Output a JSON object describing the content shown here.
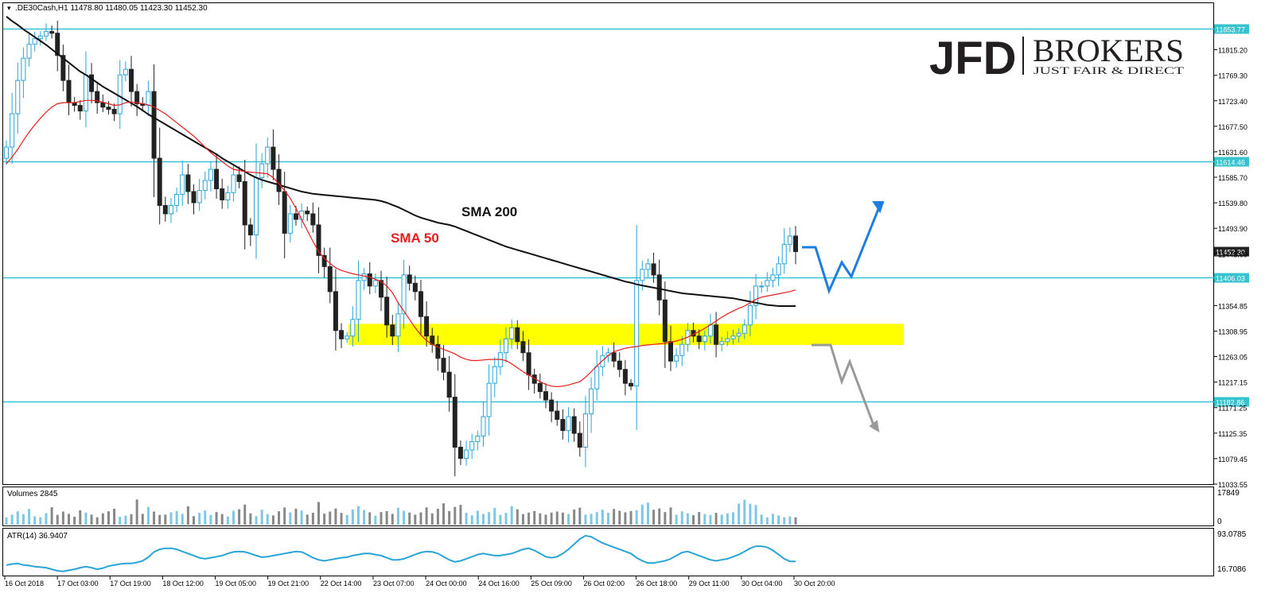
{
  "header": {
    "symbol_text": ".DE30Cash,H1  11478.80 11480.05 11423.30 11452.30"
  },
  "logo": {
    "jfd": "JFD",
    "brokers": "BROKERS",
    "tagline": "JUST FAIR & DIRECT"
  },
  "colors": {
    "level_line": "#36c2cf",
    "sma200": "#111111",
    "sma50": "#e41e1e",
    "zone": "#ffff00",
    "bull_scenario": "#1e7de0",
    "bear_scenario": "#9a9a9a",
    "volume_bar": "#7ec8e3",
    "atr_line": "#2aa4d6"
  },
  "chart_data": [
    {
      "type": "candlestick",
      "symbol": ".DE30Cash",
      "timeframe": "H1",
      "ohlc_current": {
        "open": 11478.8,
        "high": 11480.05,
        "low": 11423.3,
        "close": 11452.3
      },
      "ylim": [
        11033.55,
        11899.0
      ],
      "y_ticks": [
        11853.77,
        11815.2,
        11769.3,
        11723.4,
        11677.5,
        11631.6,
        11585.7,
        11539.8,
        11493.9,
        11448.0,
        11406.03,
        11354.85,
        11308.95,
        11263.05,
        11217.15,
        11171.25,
        11125.35,
        11079.45,
        11033.55
      ],
      "x_ticks": [
        "16 Oct 2018",
        "17 Oct 03:00",
        "17 Oct 19:00",
        "18 Oct 12:00",
        "19 Oct 05:00",
        "19 Oct 21:00",
        "22 Oct 14:00",
        "23 Oct 07:00",
        "24 Oct 00:00",
        "24 Oct 16:00",
        "25 Oct 09:00",
        "26 Oct 02:00",
        "26 Oct 18:00",
        "29 Oct 11:00",
        "30 Oct 04:00",
        "30 Oct 20:00"
      ],
      "horizontal_levels": [
        11853.77,
        11614.46,
        11406.03,
        11182.86
      ],
      "level_labels": [
        "11853.77",
        "11614.46",
        "11406.03",
        "11182.86"
      ],
      "current_price_label": "11452.30",
      "support_zone": [
        11284.0,
        11322.0
      ],
      "indicators": [
        {
          "name": "SMA 200",
          "label": "SMA 200"
        },
        {
          "name": "SMA 50",
          "label": "SMA 50"
        }
      ],
      "closes": [
        11640,
        11700,
        11760,
        11800,
        11825,
        11835,
        11840,
        11848,
        11845,
        11805,
        11760,
        11720,
        11715,
        11705,
        11770,
        11740,
        11720,
        11712,
        11708,
        11700,
        11770,
        11780,
        11740,
        11718,
        11715,
        11740,
        11620,
        11535,
        11520,
        11535,
        11555,
        11590,
        11560,
        11540,
        11562,
        11580,
        11600,
        11565,
        11545,
        11558,
        11590,
        11578,
        11500,
        11482,
        11585,
        11610,
        11640,
        11600,
        11560,
        11485,
        11520,
        11510,
        11525,
        11520,
        11500,
        11445,
        11425,
        11380,
        11310,
        11295,
        11300,
        11330,
        11400,
        11412,
        11390,
        11400,
        11370,
        11320,
        11300,
        11340,
        11410,
        11395,
        11380,
        11335,
        11300,
        11285,
        11260,
        11235,
        11190,
        11100,
        11080,
        11095,
        11110,
        11120,
        11155,
        11215,
        11245,
        11270,
        11295,
        11315,
        11290,
        11270,
        11230,
        11215,
        11200,
        11185,
        11165,
        11150,
        11130,
        11155,
        11125,
        11100,
        11160,
        11205,
        11245,
        11265,
        11270,
        11255,
        11240,
        11215,
        11210,
        11400,
        11420,
        11430,
        11410,
        11365,
        11290,
        11255,
        11265,
        11285,
        11310,
        11300,
        11290,
        11300,
        11320,
        11285,
        11290,
        11295,
        11300,
        11305,
        11320,
        11355,
        11390,
        11390,
        11400,
        11410,
        11430,
        11465,
        11480,
        11452
      ],
      "sma50": [
        11610,
        11622,
        11636,
        11652,
        11667,
        11680,
        11692,
        11703,
        11712,
        11718,
        11720,
        11720,
        11720,
        11722,
        11724,
        11724,
        11723,
        11721,
        11718,
        11715,
        11716,
        11720,
        11721,
        11720,
        11718,
        11716,
        11712,
        11706,
        11700,
        11692,
        11684,
        11676,
        11668,
        11660,
        11650,
        11640,
        11630,
        11622,
        11614,
        11606,
        11600,
        11598,
        11596,
        11595,
        11594,
        11593,
        11592,
        11585,
        11574,
        11562,
        11548,
        11530,
        11510,
        11490,
        11470,
        11452,
        11440,
        11431,
        11423,
        11418,
        11415,
        11412,
        11410,
        11408,
        11406,
        11402,
        11398,
        11390,
        11378,
        11360,
        11345,
        11330,
        11315,
        11302,
        11292,
        11285,
        11280,
        11276,
        11272,
        11268,
        11262,
        11258,
        11256,
        11256,
        11257,
        11258,
        11258,
        11258,
        11256,
        11250,
        11243,
        11236,
        11230,
        11224,
        11218,
        11213,
        11210,
        11209,
        11210,
        11212,
        11215,
        11218,
        11226,
        11236,
        11246,
        11256,
        11265,
        11272,
        11275,
        11278,
        11280,
        11281,
        11283,
        11284,
        11285,
        11286,
        11287,
        11289,
        11291,
        11294,
        11298,
        11303,
        11308,
        11314,
        11320,
        11327,
        11334,
        11340,
        11345,
        11350,
        11354,
        11360,
        11366,
        11370,
        11372,
        11374,
        11376,
        11378,
        11380,
        11383
      ],
      "sma200": [
        11875,
        11867,
        11860,
        11852,
        11845,
        11838,
        11831,
        11824,
        11816,
        11808,
        11800,
        11792,
        11784,
        11776,
        11770,
        11763,
        11756,
        11749,
        11743,
        11737,
        11731,
        11725,
        11719,
        11713,
        11706,
        11699,
        11693,
        11687,
        11681,
        11675,
        11669,
        11663,
        11657,
        11651,
        11645,
        11639,
        11633,
        11627,
        11620,
        11614,
        11608,
        11602,
        11596,
        11590,
        11585,
        11581,
        11578,
        11575,
        11572,
        11569,
        11566,
        11563,
        11560,
        11558,
        11556,
        11555,
        11554,
        11553,
        11552,
        11551,
        11550,
        11549,
        11548,
        11547,
        11546,
        11545,
        11543,
        11540,
        11536,
        11532,
        11527,
        11522,
        11517,
        11513,
        11510,
        11507,
        11504,
        11502,
        11500,
        11497,
        11493,
        11489,
        11485,
        11481,
        11477,
        11473,
        11469,
        11465,
        11461,
        11458,
        11455,
        11452,
        11449,
        11446,
        11443,
        11440,
        11437,
        11434,
        11431,
        11428,
        11425,
        11422,
        11419,
        11416,
        11413,
        11410,
        11407,
        11404,
        11401,
        11398,
        11396,
        11393,
        11391,
        11389,
        11387,
        11385,
        11383,
        11381,
        11379,
        11377,
        11376,
        11375,
        11374,
        11373,
        11372,
        11371,
        11370,
        11369,
        11368,
        11366,
        11364,
        11362,
        11360,
        11358,
        11356,
        11355,
        11354,
        11354,
        11354,
        11354
      ]
    },
    {
      "type": "bar",
      "name": "Volumes",
      "label": "Volumes 2845",
      "last_value": 2845,
      "ylim": [
        0,
        17849
      ],
      "y_ticks_labels": [
        "17849",
        "0"
      ],
      "values": [
        2845,
        3900,
        5200,
        4100,
        6100,
        3300,
        2845,
        4500,
        6800,
        3800,
        5100,
        4200,
        3100,
        5600,
        4700,
        3900,
        2900,
        4400,
        5200,
        6200,
        3100,
        3500,
        4100,
        9800,
        4200,
        6900,
        5100,
        3800,
        3900,
        4800,
        5300,
        4200,
        7100,
        3300,
        4600,
        5500,
        3800,
        4900,
        4100,
        3200,
        5400,
        6000,
        7800,
        4400,
        3300,
        5800,
        4100,
        3600,
        5200,
        6700,
        4800,
        6200,
        5500,
        3900,
        4600,
        8800,
        4300,
        5100,
        6300,
        4600,
        3800,
        5900,
        7200,
        5700,
        4800,
        3500,
        4900,
        5300,
        4200,
        6600,
        5400,
        4700,
        3900,
        4800,
        6700,
        4400,
        6200,
        8300,
        5300,
        6900,
        7700,
        4600,
        3600,
        5400,
        4200,
        4900,
        6500,
        3800,
        4600,
        7200,
        6000,
        4100,
        4700,
        5300,
        4400,
        3900,
        4700,
        5100,
        4700,
        4100,
        5900,
        6600,
        3900,
        4200,
        4900,
        5800,
        4600,
        6100,
        5400,
        4800,
        5300,
        5600,
        7800,
        8600,
        5800,
        6300,
        4900,
        6700,
        3900,
        5200,
        4400,
        3700,
        4900,
        4100,
        3800,
        4600,
        3900,
        4400,
        4800,
        8200,
        9700,
        8100,
        7600,
        3900,
        2845,
        4200,
        3600,
        2900,
        3200,
        2845
      ]
    },
    {
      "type": "line",
      "name": "ATR(14)",
      "label": "ATR(14) 36.9407",
      "last_value": 36.9407,
      "ylim": [
        16.7086,
        93.0785
      ],
      "y_ticks_labels": [
        "93.0785",
        "16.7086"
      ],
      "values": [
        30,
        32,
        33,
        30,
        29,
        27,
        26,
        25,
        22,
        19,
        18,
        20,
        22,
        25,
        27,
        25,
        22,
        24,
        28,
        30,
        32,
        33,
        33,
        35,
        38,
        45,
        55,
        60,
        62,
        62,
        60,
        56,
        52,
        48,
        44,
        42,
        44,
        46,
        48,
        52,
        55,
        56,
        55,
        52,
        48,
        45,
        46,
        48,
        50,
        52,
        54,
        56,
        55,
        50,
        44,
        40,
        38,
        40,
        42,
        44,
        45,
        48,
        50,
        52,
        52,
        50,
        48,
        44,
        40,
        40,
        42,
        46,
        50,
        54,
        56,
        55,
        52,
        46,
        40,
        36,
        38,
        42,
        46,
        50,
        52,
        50,
        48,
        48,
        50,
        52,
        56,
        60,
        62,
        58,
        52,
        46,
        44,
        46,
        52,
        60,
        70,
        80,
        86,
        84,
        78,
        72,
        68,
        64,
        60,
        56,
        52,
        44,
        38,
        34,
        34,
        36,
        38,
        42,
        48,
        54,
        56,
        52,
        48,
        44,
        40,
        38,
        40,
        42,
        46,
        50,
        56,
        62,
        66,
        66,
        64,
        58,
        50,
        42,
        37,
        36.94
      ]
    }
  ]
}
